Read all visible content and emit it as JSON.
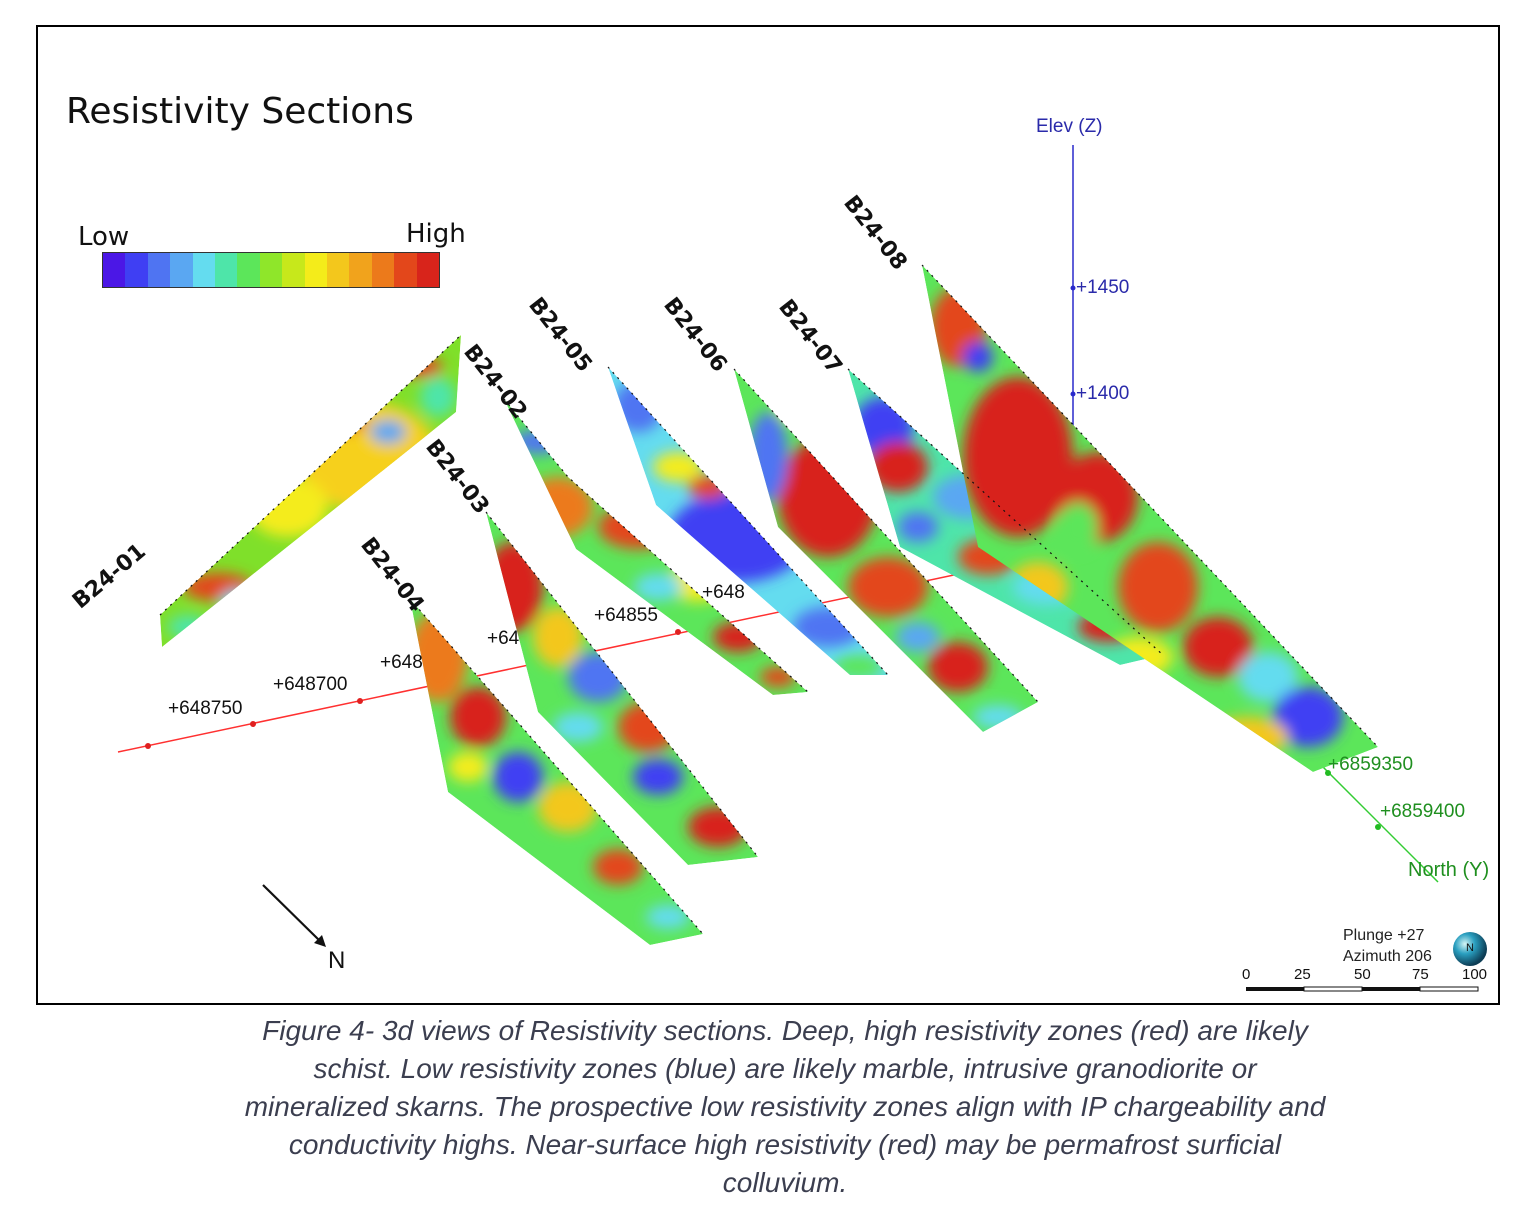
{
  "title": "Resistivity Sections",
  "legend": {
    "low_label": "Low",
    "high_label": "High",
    "colors": [
      "#4b17e6",
      "#3f3ff3",
      "#4f74f2",
      "#5aa7f2",
      "#64dcef",
      "#4ee5a9",
      "#5ce65a",
      "#8fe62a",
      "#c7e81b",
      "#f4ec1a",
      "#f3c71c",
      "#f1a31c",
      "#ec7a1b",
      "#e3471b",
      "#d8241b"
    ]
  },
  "sections": [
    {
      "label": "B24-01"
    },
    {
      "label": "B24-02"
    },
    {
      "label": "B24-03"
    },
    {
      "label": "B24-04"
    },
    {
      "label": "B24-05"
    },
    {
      "label": "B24-06"
    },
    {
      "label": "B24-07"
    },
    {
      "label": "B24-08"
    }
  ],
  "axes": {
    "elev_label": "Elev (Z)",
    "elev_ticks": [
      "+1450",
      "+1400"
    ],
    "east_ticks": [
      "+648750",
      "+648700",
      "+648",
      "+64",
      "+64855",
      "+648"
    ],
    "north_label": "North (Y)",
    "north_ticks": [
      "+6859350",
      "+6859400"
    ]
  },
  "north_arrow_label": "N",
  "view": {
    "plunge": "Plunge +27",
    "azimuth": "Azimuth 206",
    "globe_label": "N"
  },
  "scale_bar": [
    "0",
    "25",
    "50",
    "75",
    "100"
  ],
  "caption_lines": [
    "Figure 4- 3d views of Resistivity sections. Deep, high resistivity zones (red) are likely",
    "schist. Low resistivity zones (blue) are likely marble, intrusive granodiorite or",
    "mineralized skarns. The prospective low resistivity zones align with IP chargeability and",
    "conductivity highs. Near-surface high resistivity (red) may be permafrost surficial",
    "colluvium."
  ]
}
